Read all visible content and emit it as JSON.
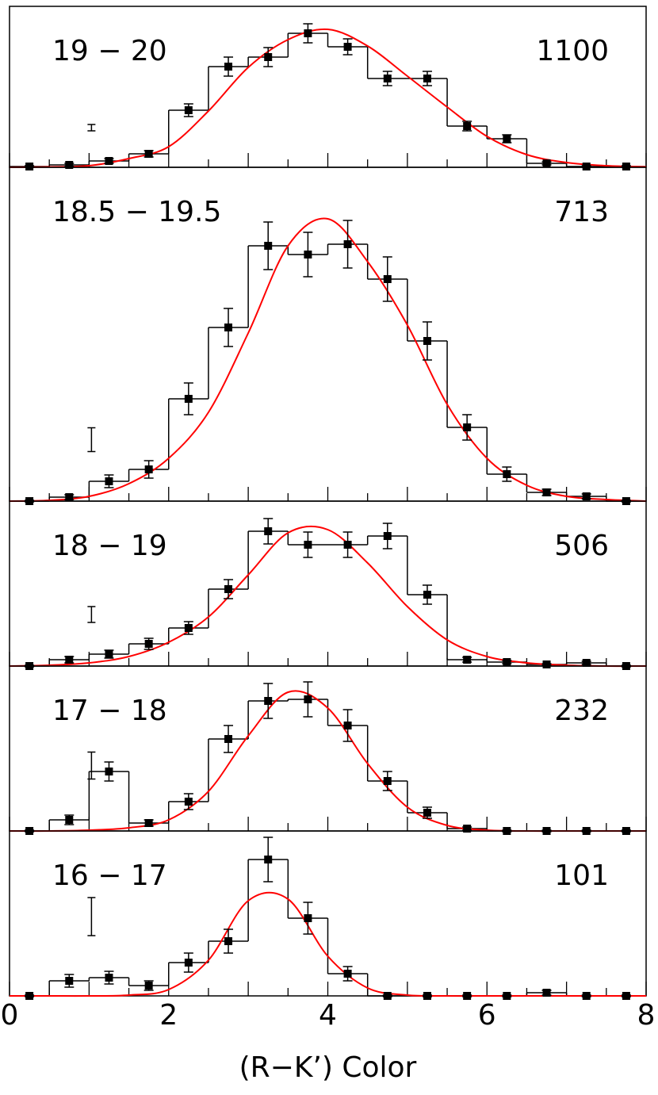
{
  "chart_data": [
    {
      "type": "histogram",
      "label": "19 − 20",
      "count": "1100",
      "bins": [
        0,
        0.5,
        1,
        1.5,
        2,
        2.5,
        3,
        3.5,
        4,
        4.5,
        5,
        5.5,
        6,
        6.5,
        7,
        7.5,
        8
      ],
      "values": [
        1,
        3,
        8,
        17,
        72,
        127,
        139,
        169,
        152,
        112,
        112,
        52,
        36,
        5,
        1,
        1
      ],
      "errors": [
        1,
        2,
        3,
        4,
        8,
        12,
        12,
        12,
        10,
        9,
        9,
        6,
        5,
        2,
        1,
        1
      ],
      "sample_error": 4,
      "curve": {
        "color": "#ff0000",
        "x": [
          0,
          0.5,
          1,
          1.5,
          2,
          2.5,
          3,
          3.5,
          4,
          4.5,
          5,
          5.5,
          6,
          6.5,
          7,
          7.5,
          8
        ],
        "values": [
          0,
          0.5,
          2,
          11,
          26,
          71,
          126,
          161,
          174,
          153,
          115,
          76,
          39,
          16,
          6,
          2,
          0.5
        ]
      },
      "xlim": [
        0,
        8
      ],
      "ylim": [
        0,
        203
      ]
    },
    {
      "type": "histogram",
      "label": "18.5 − 19.5",
      "count": "713",
      "bins": [
        0,
        0.5,
        1,
        1.5,
        2,
        2.5,
        3,
        3.5,
        4,
        4.5,
        5,
        5.5,
        6,
        6.5,
        7,
        7.5,
        8
      ],
      "values": [
        0,
        5,
        25,
        40,
        129,
        219,
        322,
        311,
        324,
        280,
        202,
        93,
        34,
        11,
        6,
        0
      ],
      "errors": [
        1,
        3,
        8,
        11,
        20,
        24,
        30,
        28,
        30,
        28,
        24,
        16,
        9,
        4,
        3,
        1
      ],
      "sample_error": 15,
      "curve": {
        "color": "#ff0000",
        "x": [
          0,
          0.5,
          1,
          1.5,
          2,
          2.5,
          3,
          3.5,
          4,
          4.5,
          5,
          5.5,
          6,
          6.5,
          7,
          7.5,
          8
        ],
        "values": [
          0,
          1,
          6,
          22,
          54,
          112,
          212,
          322,
          356,
          302,
          222,
          122,
          54,
          20,
          6,
          2,
          0
        ]
      },
      "xlim": [
        0,
        8
      ],
      "ylim": [
        0,
        421
      ]
    },
    {
      "type": "histogram",
      "label": "18 − 19",
      "count": "506",
      "bins": [
        0,
        0.5,
        1,
        1.5,
        2,
        2.5,
        3,
        3.5,
        4,
        4.5,
        5,
        5.5,
        6,
        6.5,
        7,
        7.5,
        8
      ],
      "values": [
        0,
        8,
        15,
        28,
        48,
        97,
        170,
        153,
        153,
        164,
        90,
        8,
        5,
        2,
        4,
        0
      ],
      "errors": [
        1,
        4,
        5,
        7,
        8,
        12,
        16,
        16,
        16,
        16,
        12,
        3,
        2,
        1,
        2,
        1
      ],
      "sample_error": 10,
      "curve": {
        "color": "#ff0000",
        "x": [
          0,
          0.5,
          1,
          1.5,
          2,
          2.5,
          3,
          3.5,
          4,
          4.5,
          5,
          5.5,
          6,
          6.5,
          7,
          7.5,
          8
        ],
        "values": [
          0,
          1,
          4,
          12,
          30,
          62,
          115,
          168,
          172,
          130,
          75,
          33,
          12,
          4,
          1,
          0,
          0
        ]
      },
      "xlim": [
        0,
        8
      ],
      "ylim": [
        0,
        208
      ]
    },
    {
      "type": "histogram",
      "label": "17 − 18",
      "count": "232",
      "bins": [
        0,
        0.5,
        1,
        1.5,
        2,
        2.5,
        3,
        3.5,
        4,
        4.5,
        5,
        5.5,
        6,
        6.5,
        7,
        7.5,
        8
      ],
      "values": [
        0,
        14,
        75,
        10,
        37,
        116,
        164,
        166,
        133,
        63,
        23,
        3,
        0,
        0,
        0,
        0
      ],
      "errors": [
        1,
        6,
        12,
        4,
        10,
        17,
        22,
        22,
        20,
        12,
        7,
        2,
        1,
        1,
        1,
        1
      ],
      "sample_error": 17,
      "curve": {
        "color": "#ff0000",
        "x": [
          0,
          0.5,
          1,
          1.5,
          2,
          2.5,
          3,
          3.5,
          4,
          4.5,
          5,
          5.5,
          6,
          6.5,
          7,
          7.5,
          8
        ],
        "values": [
          0,
          0,
          1,
          4,
          14,
          50,
          120,
          175,
          155,
          85,
          30,
          7,
          1,
          0,
          0,
          0,
          0
        ]
      },
      "xlim": [
        0,
        8
      ],
      "ylim": [
        0,
        208
      ]
    },
    {
      "type": "histogram",
      "label": "16 − 17",
      "count": "101",
      "bins": [
        0,
        0.5,
        1,
        1.5,
        2,
        2.5,
        3,
        3.5,
        4,
        4.5,
        5,
        5.5,
        6,
        6.5,
        7,
        7.5,
        8
      ],
      "values": [
        0,
        19,
        23,
        13,
        42,
        69,
        172,
        98,
        28,
        0,
        0,
        0,
        0,
        4,
        0,
        0
      ],
      "errors": [
        1,
        8,
        8,
        6,
        12,
        15,
        28,
        20,
        9,
        1,
        1,
        1,
        1,
        3,
        1,
        1
      ],
      "sample_error": 24,
      "curve": {
        "color": "#ff0000",
        "x": [
          0,
          0.5,
          1,
          1.5,
          2,
          2.5,
          3,
          3.5,
          4,
          4.5,
          5,
          5.5,
          6,
          6.5,
          7,
          7.5,
          8
        ],
        "values": [
          0,
          0,
          0,
          1,
          8,
          45,
          120,
          122,
          50,
          10,
          1,
          0,
          0,
          0,
          0,
          0,
          0
        ]
      },
      "xlim": [
        0,
        8
      ],
      "ylim": [
        0,
        208
      ],
      "xticks": [
        0,
        2,
        4,
        6,
        8
      ],
      "xlabel": "(R−K’) Color"
    }
  ]
}
